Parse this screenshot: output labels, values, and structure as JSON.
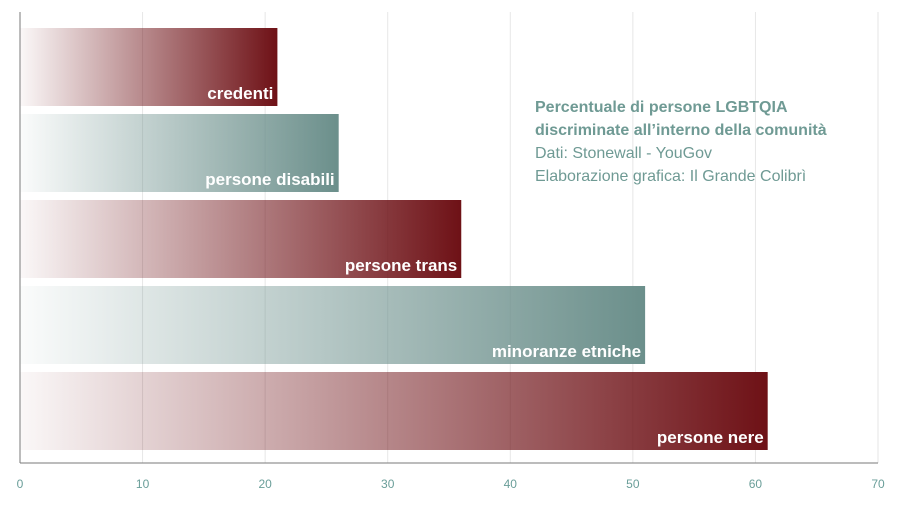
{
  "chart_data": {
    "type": "bar",
    "orientation": "horizontal",
    "categories": [
      "credenti",
      "persone disabili",
      "persone trans",
      "minoranze etniche",
      "persone nere"
    ],
    "values": [
      21,
      26,
      36,
      51,
      61
    ],
    "xlim": [
      0,
      70
    ],
    "xticks": [
      0,
      10,
      20,
      30,
      40,
      50,
      60,
      70
    ],
    "grid": true,
    "bar_colors": [
      "#6e1116",
      "#6b8f8b",
      "#6e1116",
      "#6b8f8b",
      "#6e1116"
    ],
    "annotation": {
      "title_line1": "Percentuale di persone LGBTQIA",
      "title_line2": "discriminate all’interno della comunità",
      "source": "Dati: Stonewall - YouGov",
      "credit": "Elaborazione grafica: Il Grande Colibrì"
    }
  },
  "colors": {
    "text_accent": "#6f9a94",
    "tick_text": "#6a9e99",
    "grid": "#e6e6e6"
  }
}
